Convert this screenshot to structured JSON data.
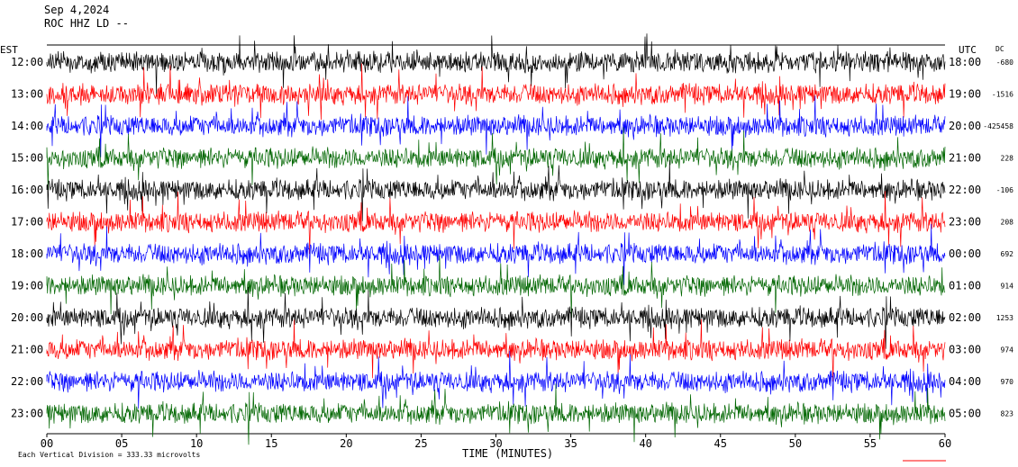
{
  "header": {
    "date": "Sep 4,2024",
    "station": "ROC HHZ LD --",
    "left_zone": "EST",
    "right_zone": "UTC",
    "dc_label": "DC"
  },
  "footer": {
    "x_axis_title": "TIME (MINUTES)",
    "scale_note": "Each Vertical Division = 333.33 microvolts"
  },
  "chart_data": {
    "type": "line",
    "title": "Sep 4,2024 ROC HHZ LD --",
    "xlabel": "TIME (MINUTES)",
    "xlim": [
      0,
      60
    ],
    "x_ticks": [
      "00",
      "05",
      "10",
      "15",
      "20",
      "25",
      "30",
      "35",
      "40",
      "45",
      "50",
      "55",
      "60"
    ],
    "left_times": [
      "12:00",
      "13:00",
      "14:00",
      "15:00",
      "16:00",
      "17:00",
      "18:00",
      "19:00",
      "20:00",
      "21:00",
      "22:00",
      "23:00"
    ],
    "right_times": [
      "18:00",
      "19:00",
      "20:00",
      "21:00",
      "22:00",
      "23:00",
      "00:00",
      "01:00",
      "02:00",
      "03:00",
      "04:00",
      "05:00"
    ],
    "dc_values": [
      "-680",
      "-1516",
      "-425458",
      "228",
      "-106",
      "208",
      "692",
      "914",
      "1253",
      "974",
      "970",
      "823"
    ],
    "trace_colors": [
      "#000000",
      "#ff0000",
      "#0000ff",
      "#006600"
    ],
    "grid": false
  }
}
